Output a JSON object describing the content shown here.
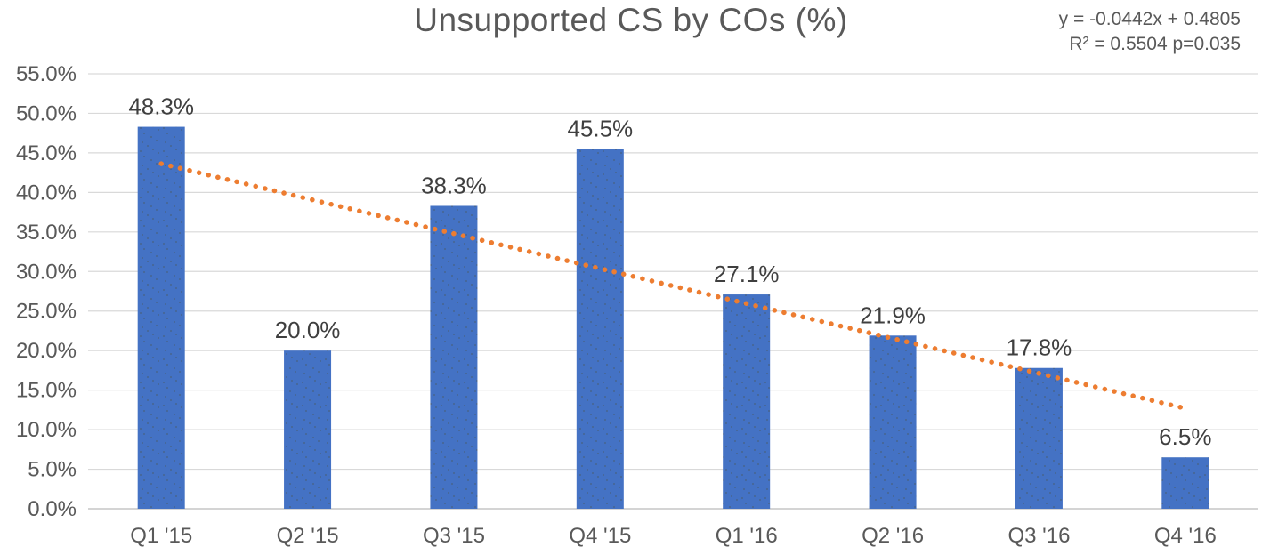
{
  "title": "Unsupported CS by COs (%)",
  "annotation": {
    "line1": "y = -0.0442x + 0.4805",
    "line2": "R² = 0.5504 p=0.035"
  },
  "chart_data": {
    "type": "bar",
    "title": "Unsupported CS by COs (%)",
    "categories": [
      "Q1 '15",
      "Q2 '15",
      "Q3 '15",
      "Q4 '15",
      "Q1 '16",
      "Q2 '16",
      "Q3 '16",
      "Q4 '16"
    ],
    "values": [
      48.3,
      20.0,
      38.3,
      45.5,
      27.1,
      21.9,
      17.8,
      6.5
    ],
    "value_labels": [
      "48.3%",
      "20.0%",
      "38.3%",
      "45.5%",
      "27.1%",
      "21.9%",
      "17.8%",
      "6.5%"
    ],
    "xlabel": "",
    "ylabel": "",
    "ylim": [
      0,
      55
    ],
    "ytick_step": 5,
    "ytick_labels": [
      "0.0%",
      "5.0%",
      "10.0%",
      "15.0%",
      "20.0%",
      "25.0%",
      "30.0%",
      "35.0%",
      "40.0%",
      "45.0%",
      "50.0%",
      "55.0%"
    ],
    "grid": true,
    "legend": "none",
    "trendline": {
      "type": "linear",
      "slope": -0.0442,
      "intercept": 0.4805,
      "equation": "y = -0.0442x + 0.4805",
      "r_squared": 0.5504,
      "p_value": 0.035,
      "style": "dotted"
    },
    "colors": {
      "bar": "#4472C4",
      "bar_texture_dot": "#4a4a28",
      "trendline": "#ED7D31",
      "gridline": "#D9D9D9",
      "axis_line": "#C6C6C6",
      "title_text": "#595959",
      "axis_text": "#595959",
      "data_label_text": "#3F3F3F"
    }
  }
}
